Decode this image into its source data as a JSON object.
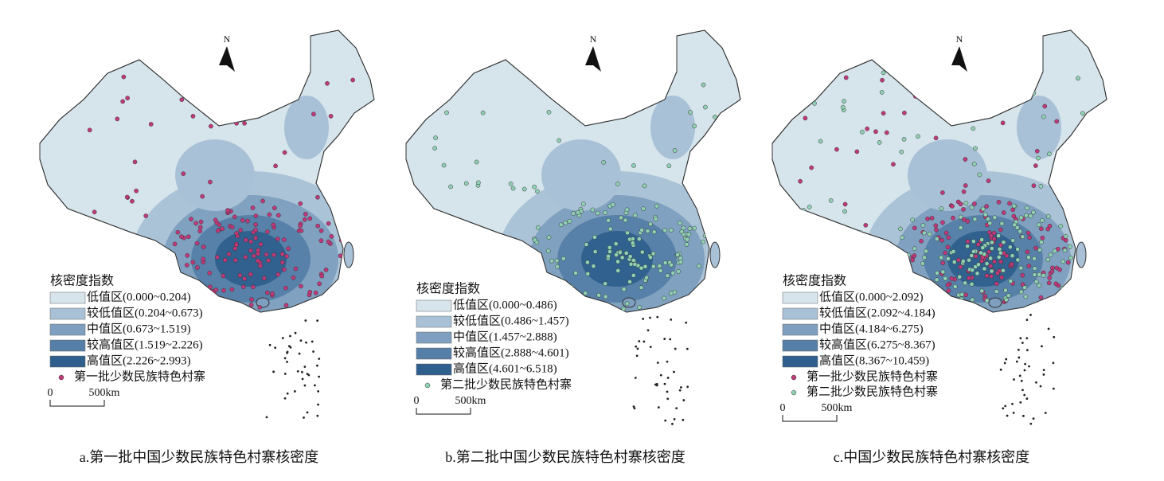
{
  "panels": [
    {
      "north": "N",
      "legend": {
        "title": "核密度指数",
        "classes": [
          {
            "label": "低值区(0.000~0.204)",
            "color": "#d6e4ec"
          },
          {
            "label": "较低值区(0.204~0.673)",
            "color": "#a9c1d6"
          },
          {
            "label": "中值区(0.673~1.519)",
            "color": "#7e9fbf"
          },
          {
            "label": "较高值区(1.519~2.226)",
            "color": "#557fa8"
          },
          {
            "label": "高值区(2.226~2.993)",
            "color": "#2f5f8c"
          }
        ],
        "points": [
          {
            "label": "第一批少数民族特色村寨",
            "color": "#c0397a"
          }
        ]
      },
      "scale": {
        "start": "0",
        "end": "500km"
      },
      "caption": "a.第一批中国少数民族特色村寨核密度"
    },
    {
      "north": "N",
      "legend": {
        "title": "核密度指数",
        "classes": [
          {
            "label": "低值区(0.000~0.486)",
            "color": "#d6e4ec"
          },
          {
            "label": "较低值区(0.486~1.457)",
            "color": "#a9c1d6"
          },
          {
            "label": "中值区(1.457~2.888)",
            "color": "#7e9fbf"
          },
          {
            "label": "较高值区(2.888~4.601)",
            "color": "#557fa8"
          },
          {
            "label": "高值区(4.601~6.518)",
            "color": "#2f5f8c"
          }
        ],
        "points": [
          {
            "label": "第二批少数民族特色村寨",
            "color": "#8fd1b3"
          }
        ]
      },
      "scale": {
        "start": "0",
        "end": "500km"
      },
      "caption": "b.第二批中国少数民族特色村寨核密度"
    },
    {
      "north": "N",
      "legend": {
        "title": "核密度指数",
        "classes": [
          {
            "label": "低值区(0.000~2.092)",
            "color": "#d6e4ec"
          },
          {
            "label": "较低值区(2.092~4.184)",
            "color": "#a9c1d6"
          },
          {
            "label": "中值区(4.184~6.275)",
            "color": "#7e9fbf"
          },
          {
            "label": "较高值区(6.275~8.367)",
            "color": "#557fa8"
          },
          {
            "label": "高值区(8.367~10.459)",
            "color": "#2f5f8c"
          }
        ],
        "points": [
          {
            "label": "第一批少数民族特色村寨",
            "color": "#c0397a"
          },
          {
            "label": "第二批少数民族特色村寨",
            "color": "#8fd1b3"
          }
        ]
      },
      "scale": {
        "start": "0",
        "end": "500km"
      },
      "caption": "c.中国少数民族特色村寨核密度"
    }
  ]
}
